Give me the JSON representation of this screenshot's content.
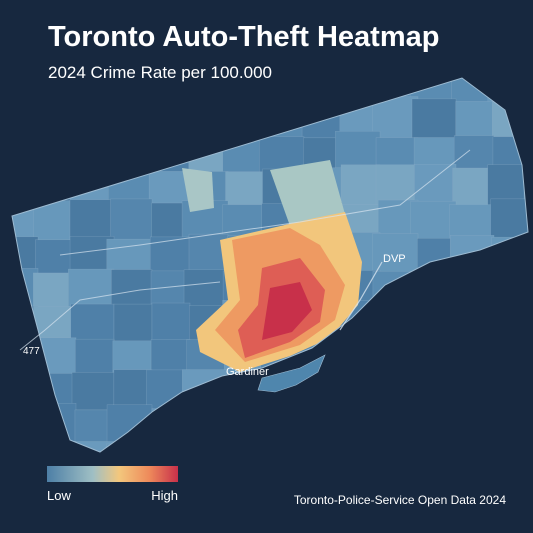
{
  "header": {
    "title": "Toronto Auto-Theft Heatmap",
    "subtitle": "2024 Crime Rate per 100.000"
  },
  "map": {
    "labels": [
      "DVP",
      "Gardiner",
      "477"
    ]
  },
  "legend": {
    "low": "Low",
    "high": "High"
  },
  "footer": {
    "source": "Toronto-Police-Service Open Data 2024"
  }
}
